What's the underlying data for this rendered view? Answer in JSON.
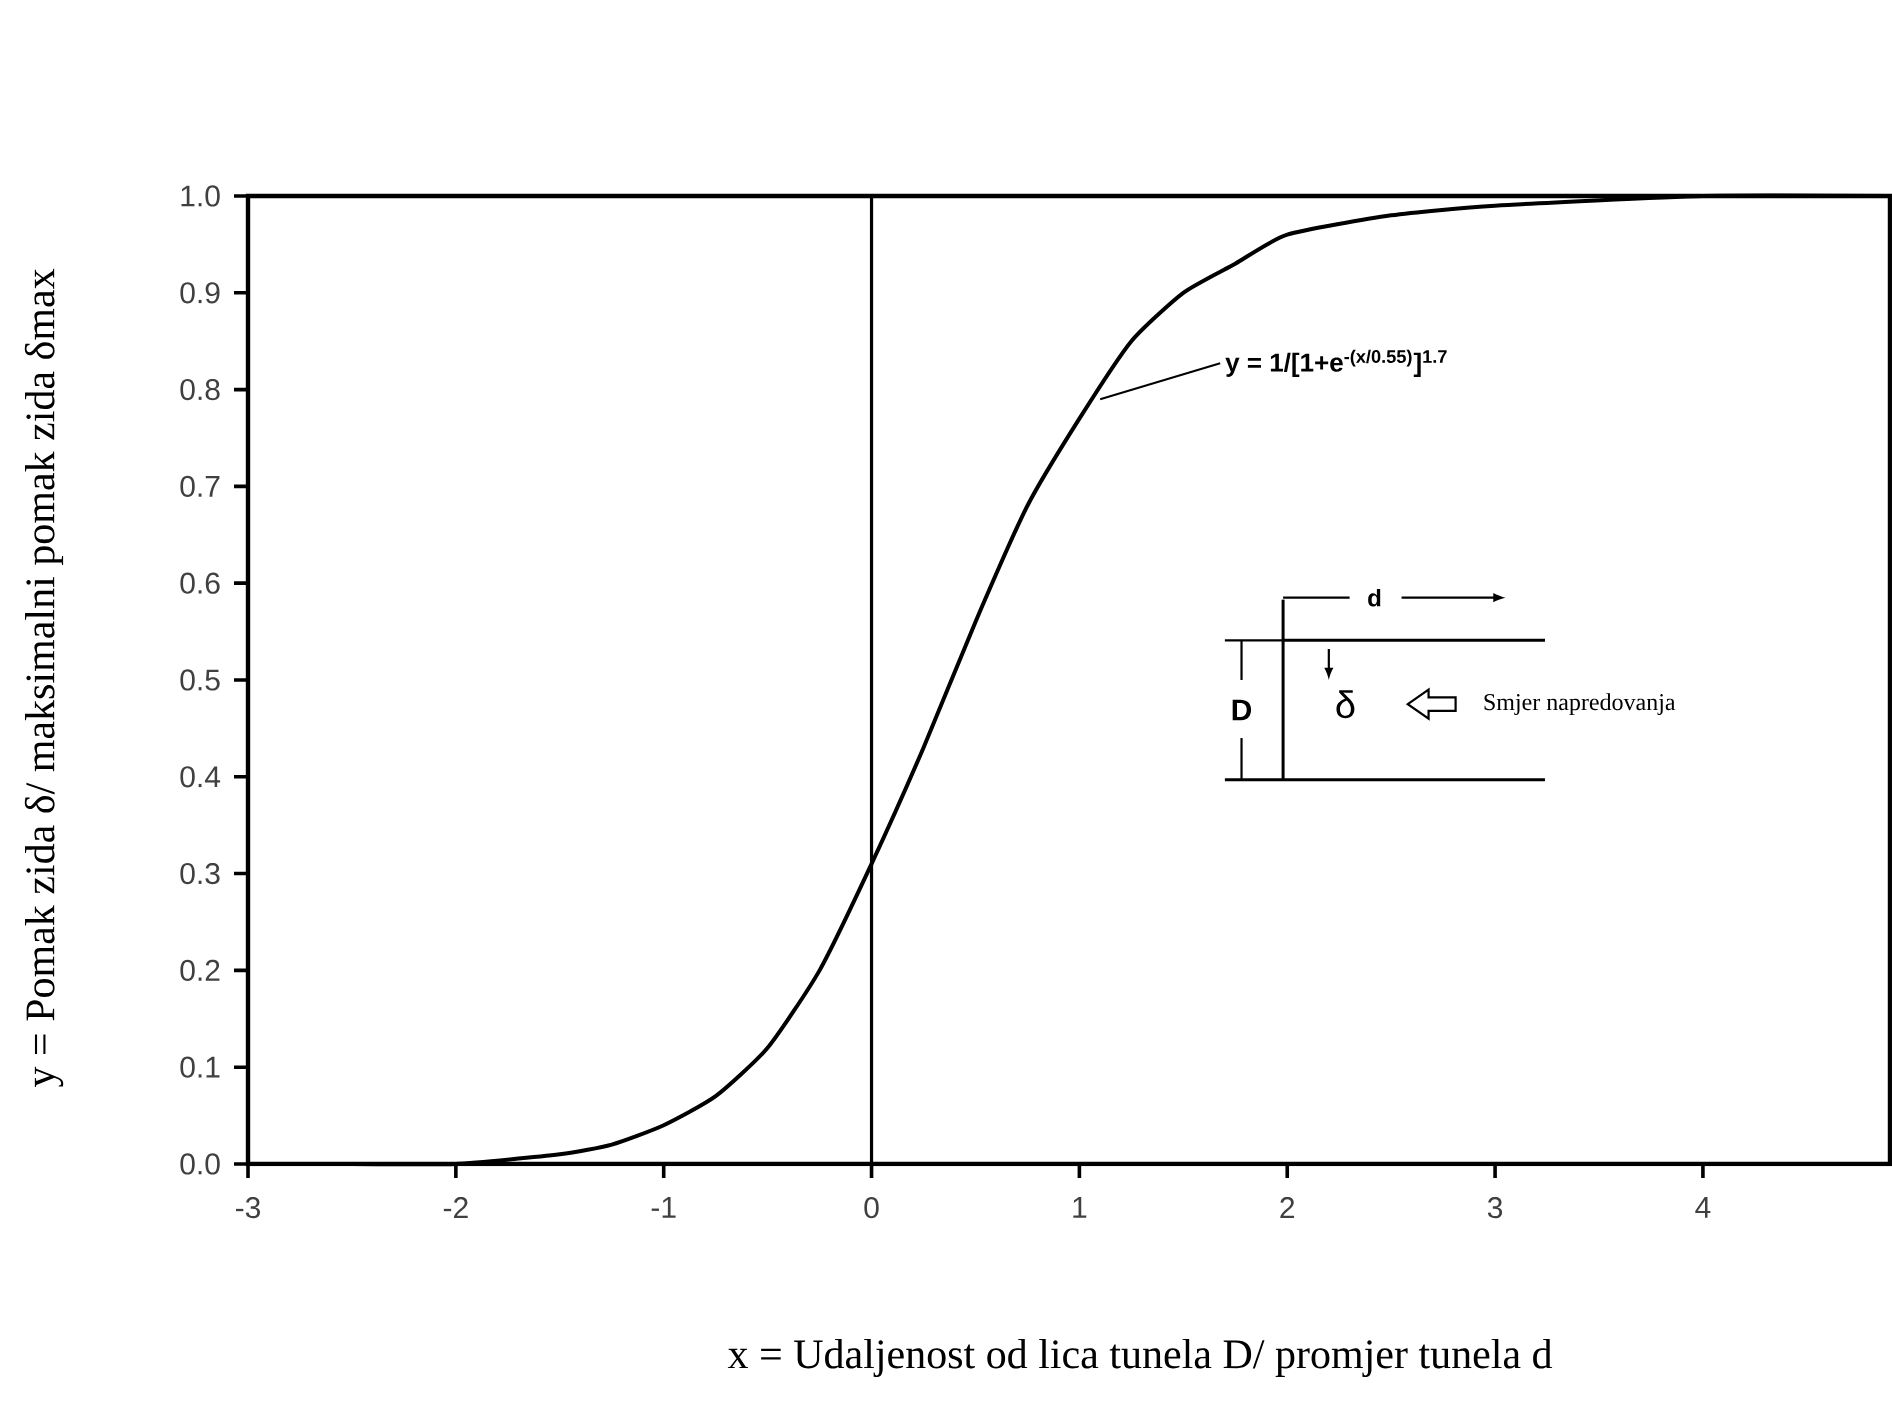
{
  "chart_data": {
    "type": "line",
    "xlabel": "x  =  Udaljenost od lica tunela D/ promjer tunela d",
    "ylabel": "y =  Pomak zida δ/ maksimalni pomak zida δmax",
    "x": [
      -3,
      -2.5,
      -2,
      -1.5,
      -1.25,
      -1,
      -0.75,
      -0.5,
      -0.25,
      0,
      0.25,
      0.5,
      0.75,
      1,
      1.25,
      1.5,
      1.75,
      2,
      2.5,
      3,
      4,
      4.9
    ],
    "series": [
      {
        "color": "#000000",
        "values": [
          0,
          0,
          0,
          0.01,
          0.02,
          0.04,
          0.07,
          0.12,
          0.2,
          0.31,
          0.43,
          0.56,
          0.68,
          0.77,
          0.85,
          0.9,
          0.93,
          0.96,
          0.98,
          0.99,
          1.0,
          1.0
        ]
      }
    ],
    "xlim": [
      -3,
      4.9
    ],
    "ylim": [
      0,
      1
    ],
    "xticks": [
      -3,
      -2,
      -1,
      0,
      1,
      2,
      3,
      4
    ],
    "yticks": [
      {
        "value": 0,
        "label": "0.0"
      },
      0.1,
      0.2,
      0.3,
      0.4,
      0.5,
      0.6,
      0.7,
      0.8,
      0.9,
      {
        "value": 1,
        "label": "1.0"
      }
    ],
    "ref_lines": [
      {
        "axis": "x",
        "value": 0,
        "color": "#000000"
      }
    ],
    "annotations": [
      {
        "text": "y = 1/[1+e$^{-(x/0.55)}$]$^{1.7}$",
        "x": 1.1,
        "y": 0.79
      },
      "d",
      "D",
      "δ",
      "Smjer napredovanja"
    ],
    "grid": false,
    "marker": "none",
    "line_style": "solid"
  }
}
